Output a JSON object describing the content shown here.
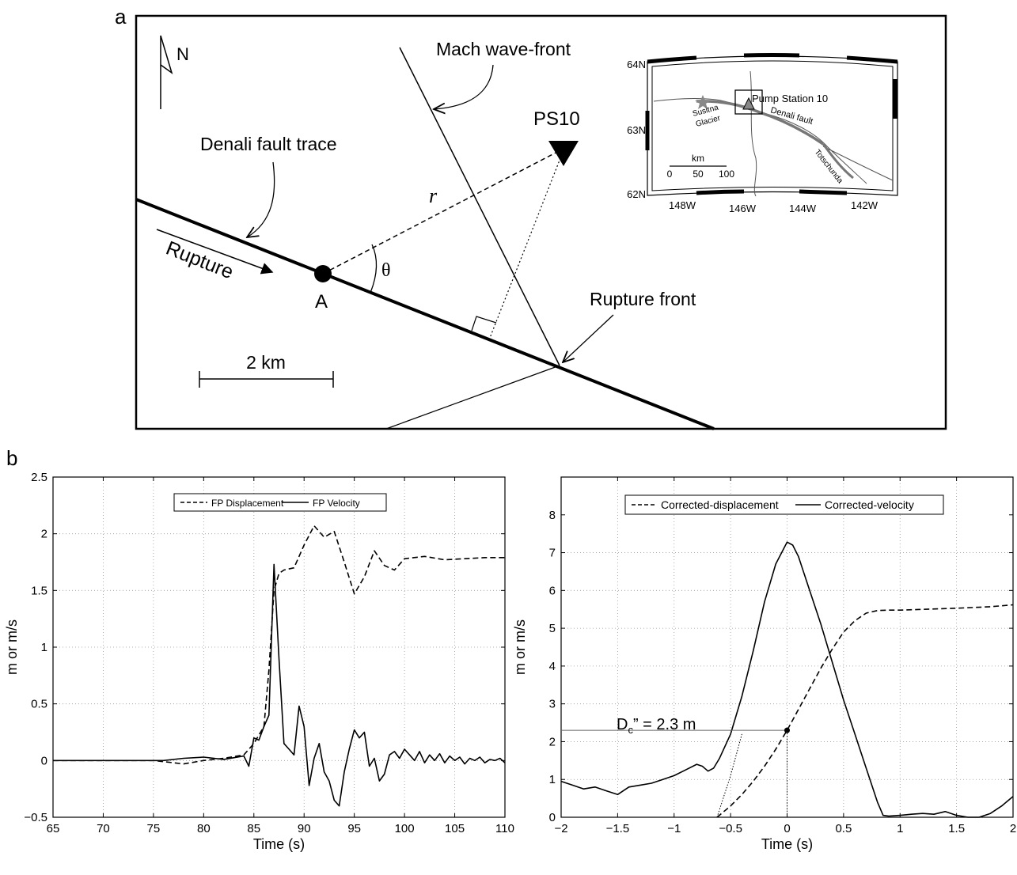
{
  "panel_a": {
    "letter": "a",
    "north": "N",
    "labels": {
      "mach": "Mach wave-front",
      "station": "PS10",
      "fault_trace": "Denali fault trace",
      "r": "r",
      "theta": "θ",
      "rupture": "Rupture",
      "point_a": "A",
      "rupture_front": "Rupture front",
      "scale": "2 km"
    },
    "inset": {
      "lat_labels": [
        "64N",
        "63N",
        "62N"
      ],
      "lon_labels": [
        "148W",
        "146W",
        "144W",
        "142W"
      ],
      "station": "Pump Station 10",
      "glacier": [
        "Susitna",
        "Glacier"
      ],
      "fault": "Denali fault",
      "totschunda": "Totschunda",
      "scale_unit": "km",
      "scale_ticks": [
        "0",
        "50",
        "100"
      ]
    }
  },
  "panel_b": {
    "letter": "b",
    "left_legend": [
      "FP Displacement",
      "FP Velocity"
    ],
    "right_legend": [
      "Corrected-displacement",
      "Corrected-velocity"
    ],
    "dc_label": "D",
    "dc_sub": "c",
    "dc_value": "” = 2.3 m"
  },
  "chart_data": [
    {
      "type": "line",
      "xlabel": "Time (s)",
      "ylabel": "m or m/s",
      "xlim": [
        65,
        110
      ],
      "ylim": [
        -0.5,
        2.5
      ],
      "xticks": [
        65,
        70,
        75,
        80,
        85,
        90,
        95,
        100,
        105,
        110
      ],
      "yticks": [
        -0.5,
        0,
        0.5,
        1,
        1.5,
        2,
        2.5
      ],
      "grid": true,
      "legend": "top-center",
      "series": [
        {
          "name": "FP Displacement",
          "style": "dashed",
          "x": [
            65,
            75,
            78,
            80,
            82,
            84,
            85,
            86,
            86.5,
            87,
            87.5,
            88,
            89,
            90,
            91,
            92,
            93,
            94,
            95,
            96,
            97,
            98,
            99,
            100,
            102,
            104,
            106,
            108,
            110
          ],
          "y": [
            0,
            0,
            -0.03,
            0,
            0.02,
            0.05,
            0.15,
            0.3,
            0.8,
            1.5,
            1.65,
            1.68,
            1.7,
            1.9,
            2.07,
            1.97,
            2.02,
            1.75,
            1.47,
            1.62,
            1.85,
            1.72,
            1.68,
            1.78,
            1.8,
            1.77,
            1.78,
            1.79,
            1.79
          ]
        },
        {
          "name": "FP Velocity",
          "style": "solid",
          "x": [
            65,
            76,
            78,
            80,
            82,
            84,
            84.5,
            85,
            85.5,
            86,
            86.5,
            87,
            87.5,
            88,
            88.5,
            89,
            89.5,
            90,
            90.5,
            91,
            91.5,
            92,
            92.5,
            93,
            93.5,
            94,
            94.5,
            95,
            95.5,
            96,
            96.5,
            97,
            97.5,
            98,
            98.5,
            99,
            99.5,
            100,
            100.5,
            101,
            101.5,
            102,
            102.5,
            103,
            103.5,
            104,
            104.5,
            105,
            105.5,
            106,
            106.5,
            107,
            107.5,
            108,
            108.5,
            109,
            109.5,
            110
          ],
          "y": [
            0,
            0,
            0.02,
            0.03,
            0.01,
            0.04,
            -0.05,
            0.2,
            0.18,
            0.3,
            0.4,
            1.73,
            0.9,
            0.15,
            0.1,
            0.05,
            0.48,
            0.3,
            -0.22,
            0.02,
            0.15,
            -0.1,
            -0.18,
            -0.35,
            -0.4,
            -0.1,
            0.1,
            0.27,
            0.2,
            0.25,
            -0.05,
            0.02,
            -0.18,
            -0.12,
            0.05,
            0.08,
            0.02,
            0.1,
            0.05,
            0.0,
            0.08,
            -0.02,
            0.05,
            0.0,
            0.06,
            -0.02,
            0.04,
            0.0,
            0.03,
            -0.03,
            0.02,
            0.0,
            0.03,
            -0.02,
            0.01,
            0.0,
            0.02,
            -0.02
          ]
        }
      ]
    },
    {
      "type": "line",
      "xlabel": "Time (s)",
      "ylabel": "m or m/s",
      "xlim": [
        -2,
        2
      ],
      "ylim": [
        0,
        9
      ],
      "xticks": [
        -2,
        -1.5,
        -1,
        -0.5,
        0,
        0.5,
        1,
        1.5,
        2
      ],
      "yticks": [
        0,
        1,
        2,
        3,
        4,
        5,
        6,
        7,
        8
      ],
      "grid": true,
      "legend": "top-center",
      "series": [
        {
          "name": "Corrected-displacement",
          "style": "dashed",
          "x": [
            -0.62,
            -0.5,
            -0.4,
            -0.3,
            -0.2,
            -0.1,
            0,
            0.1,
            0.2,
            0.3,
            0.4,
            0.5,
            0.6,
            0.7,
            0.8,
            0.9,
            1.0,
            1.2,
            1.5,
            1.8,
            2.0
          ],
          "y": [
            0,
            0.3,
            0.6,
            0.95,
            1.35,
            1.8,
            2.3,
            2.85,
            3.4,
            3.95,
            4.45,
            4.9,
            5.2,
            5.4,
            5.47,
            5.48,
            5.48,
            5.5,
            5.53,
            5.57,
            5.62
          ]
        },
        {
          "name": "Corrected-velocity",
          "style": "solid",
          "x": [
            -2.0,
            -1.9,
            -1.8,
            -1.7,
            -1.6,
            -1.5,
            -1.4,
            -1.3,
            -1.2,
            -1.1,
            -1.0,
            -0.9,
            -0.8,
            -0.75,
            -0.7,
            -0.65,
            -0.6,
            -0.5,
            -0.4,
            -0.3,
            -0.2,
            -0.1,
            0,
            0.05,
            0.1,
            0.2,
            0.3,
            0.4,
            0.5,
            0.6,
            0.7,
            0.8,
            0.85,
            0.9,
            1.0,
            1.1,
            1.2,
            1.3,
            1.4,
            1.5,
            1.6,
            1.7,
            1.8,
            1.9,
            2.0
          ],
          "y": [
            0.95,
            0.85,
            0.75,
            0.8,
            0.7,
            0.6,
            0.8,
            0.85,
            0.9,
            1.0,
            1.1,
            1.25,
            1.4,
            1.35,
            1.22,
            1.3,
            1.55,
            2.2,
            3.2,
            4.4,
            5.7,
            6.7,
            7.28,
            7.2,
            6.9,
            6.0,
            5.1,
            4.1,
            3.1,
            2.2,
            1.3,
            0.4,
            0.05,
            0.03,
            0.05,
            0.08,
            0.1,
            0.08,
            0.15,
            0.05,
            0.0,
            0.0,
            0.1,
            0.3,
            0.55
          ]
        },
        {
          "name": "",
          "style": "dotted",
          "x": [
            -0.62,
            -0.5,
            -0.4
          ],
          "y": [
            0,
            1.1,
            2.2
          ]
        }
      ],
      "dc_point": {
        "x": 0,
        "y": 2.3
      }
    }
  ]
}
